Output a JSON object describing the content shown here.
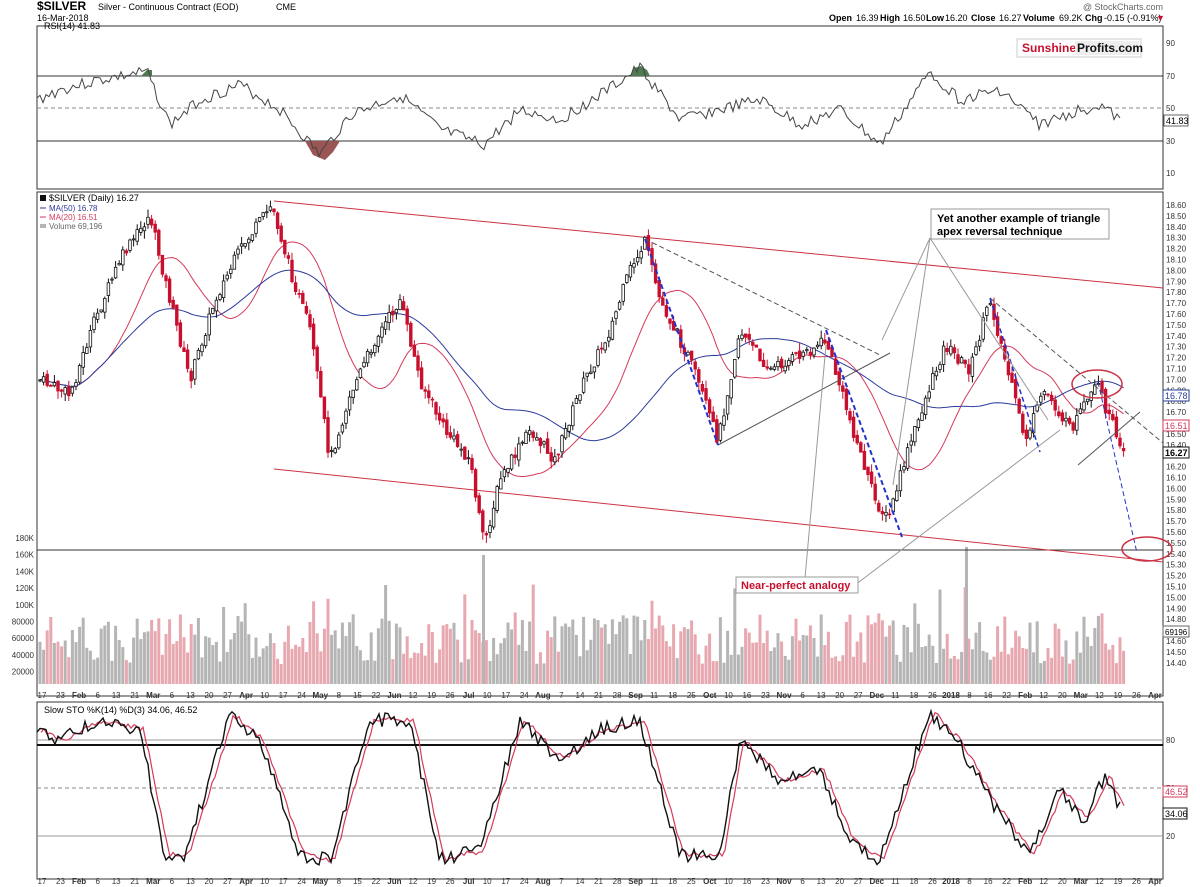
{
  "header": {
    "symbol": "$SILVER",
    "description": "Silver - Continuous Contract (EOD)",
    "exchange": "CME",
    "date": "16-Mar-2018",
    "watermark": "@ StockCharts.com",
    "open_label": "Open",
    "open": "16.39",
    "high_label": "High",
    "high": "16.50",
    "low_label": "Low",
    "low": "16.20",
    "close_label": "Close",
    "close": "16.27",
    "volume_label": "Volume",
    "volume": "69.2K",
    "chg_label": "Chg",
    "chg": "-0.15 (-0.91%)",
    "chg_arrow": "▼"
  },
  "logo": {
    "part1": "Sunshine",
    "part2": "Profits",
    "part3": ".com"
  },
  "rsi_panel": {
    "title": "RSI(14) 41.83",
    "current_label": "41.83",
    "levels": [
      90,
      70,
      50,
      30,
      10
    ]
  },
  "price_panel": {
    "legend_title": "$SILVER (Daily) 16.27",
    "legend_ma50": "MA(50) 16.78",
    "legend_ma20": "MA(20) 16.51",
    "legend_volume": "Volume 69,196",
    "axis_labels": [
      "18.60",
      "18.50",
      "18.40",
      "18.30",
      "18.20",
      "18.10",
      "18.00",
      "17.90",
      "17.80",
      "17.70",
      "17.60",
      "17.50",
      "17.40",
      "17.30",
      "17.20",
      "17.10",
      "17.00",
      "16.90",
      "16.80",
      "16.70",
      "16.60",
      "16.50",
      "16.40",
      "16.30",
      "16.20",
      "16.10",
      "16.00",
      "15.90",
      "15.80",
      "15.70",
      "15.60",
      "15.50",
      "15.40",
      "15.30",
      "15.20",
      "15.10",
      "15.00",
      "14.90",
      "14.80",
      "14.70",
      "14.60",
      "14.50",
      "14.40"
    ],
    "price_tag_close": "16.27",
    "price_tag_ma50": "16.78",
    "price_tag_ma20": "16.51",
    "volume_axis_labels": [
      "180K",
      "160K",
      "140K",
      "120K",
      "100K",
      "80000",
      "60000",
      "40000",
      "20000"
    ],
    "volume_tag": "69196"
  },
  "annotations": {
    "triangle_text_1": "Yet another example of triangle",
    "triangle_text_2": "apex reversal technique",
    "analogy_text": "Near-perfect analogy"
  },
  "date_axis": {
    "labels": [
      "17",
      "23",
      "Feb",
      "6",
      "13",
      "21",
      "Mar",
      "6",
      "13",
      "20",
      "27",
      "Apr",
      "10",
      "17",
      "24",
      "May",
      "8",
      "15",
      "22",
      "Jun",
      "12",
      "19",
      "26",
      "Jul",
      "10",
      "17",
      "24",
      "Aug",
      "7",
      "14",
      "21",
      "28",
      "Sep",
      "11",
      "18",
      "25",
      "Oct",
      "10",
      "16",
      "23",
      "Nov",
      "6",
      "13",
      "20",
      "27",
      "Dec",
      "11",
      "18",
      "26",
      "2018",
      "8",
      "16",
      "22",
      "Feb",
      "12",
      "20",
      "Mar",
      "12",
      "19",
      "26",
      "Apr"
    ]
  },
  "sto_panel": {
    "title": "Slow STO %K(14) %D(3) 34.06, 46.52",
    "levels": [
      80,
      50,
      20
    ],
    "tag_d": "46.52",
    "tag_k": "34.06"
  },
  "colors": {
    "up_candle": "#111111",
    "down_candle": "#c8102e",
    "ma50": "#2b3a9c",
    "ma20": "#d43a5a",
    "trendline_red": "#cc3344",
    "triangle_dashed": "#555555",
    "projection_blue": "#2233cc",
    "volume_up": "#b5b5b5",
    "volume_down": "#e8a8b0",
    "rsi_overbought": "#4f7a4f",
    "rsi_oversold": "#9a5555"
  },
  "chart_data": {
    "type": "candlestick",
    "symbol": "$SILVER",
    "period": "Daily",
    "last": {
      "open": 16.39,
      "high": 16.5,
      "low": 16.2,
      "close": 16.27,
      "volume": 69196
    },
    "ylim": [
      14.35,
      18.65
    ],
    "key_points": [
      {
        "date": "2017-04-17",
        "price": 18.6
      },
      {
        "date": "2017-07-07",
        "price": 15.2
      },
      {
        "date": "2017-09-08",
        "price": 18.3
      },
      {
        "date": "2017-10-06",
        "price": 16.35
      },
      {
        "date": "2017-12-12",
        "price": 15.6
      },
      {
        "date": "2018-01-25",
        "price": 17.7
      },
      {
        "date": "2018-03-16",
        "price": 16.27
      }
    ],
    "indicators": {
      "rsi14": 41.83,
      "ma50": 16.78,
      "ma20": 16.51,
      "slow_sto_k": 34.06,
      "slow_sto_d": 46.52
    }
  }
}
